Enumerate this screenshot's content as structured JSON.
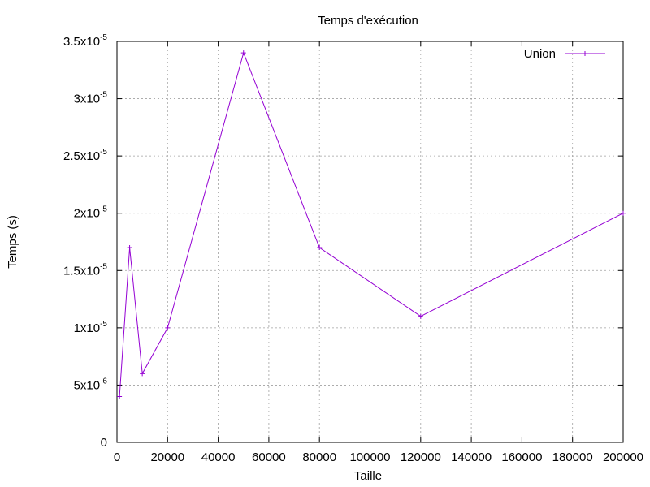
{
  "chart_data": {
    "type": "line",
    "title": "Temps d'exécution",
    "xlabel": "Taille",
    "ylabel": "Temps (s)",
    "xlim": [
      0,
      200000
    ],
    "ylim": [
      0,
      3.5e-05
    ],
    "grid": true,
    "legend_position": "top-right",
    "x_ticks": [
      0,
      20000,
      40000,
      60000,
      80000,
      100000,
      120000,
      140000,
      160000,
      180000,
      200000
    ],
    "x_tick_labels": [
      "0",
      "20000",
      "40000",
      "60000",
      "80000",
      "100000",
      "120000",
      "140000",
      "160000",
      "180000",
      "200000"
    ],
    "y_ticks": [
      {
        "value": 0,
        "mantissa": "0",
        "exponent": ""
      },
      {
        "value": 5e-06,
        "mantissa": "5x10",
        "exponent": "-6"
      },
      {
        "value": 1e-05,
        "mantissa": "1x10",
        "exponent": "-5"
      },
      {
        "value": 1.5e-05,
        "mantissa": "1.5x10",
        "exponent": "-5"
      },
      {
        "value": 2e-05,
        "mantissa": "2x10",
        "exponent": "-5"
      },
      {
        "value": 2.5e-05,
        "mantissa": "2.5x10",
        "exponent": "-5"
      },
      {
        "value": 3e-05,
        "mantissa": "3x10",
        "exponent": "-5"
      },
      {
        "value": 3.5e-05,
        "mantissa": "3.5x10",
        "exponent": "-5"
      }
    ],
    "series": [
      {
        "name": "Union",
        "color": "#9400d3",
        "x": [
          1000,
          5000,
          10000,
          20000,
          50000,
          80000,
          120000,
          200000
        ],
        "y": [
          4e-06,
          1.7e-05,
          6e-06,
          1e-05,
          3.4e-05,
          1.7e-05,
          1.1e-05,
          2e-05
        ]
      }
    ]
  }
}
